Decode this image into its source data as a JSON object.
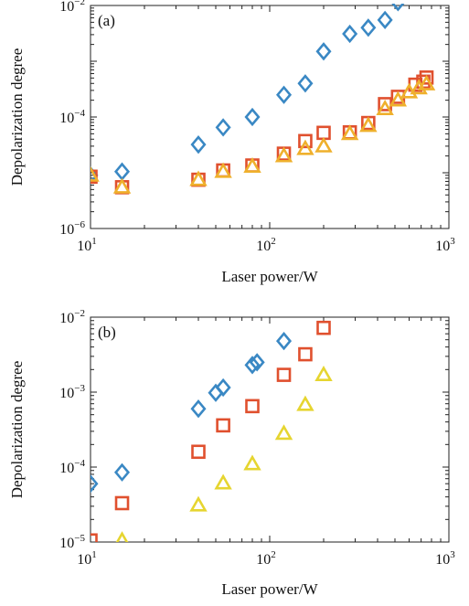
{
  "chart_data": [
    {
      "type": "scatter",
      "panel_label": "(a)",
      "xlabel": "Laser power/W",
      "ylabel": "Depolarization degree",
      "xscale": "log",
      "yscale": "log",
      "xlim": [
        10,
        1000
      ],
      "ylim": [
        1e-06,
        0.01
      ],
      "x_ticks": [
        {
          "base": "10",
          "exp": "1",
          "value": 10
        },
        {
          "base": "10",
          "exp": "2",
          "value": 100
        },
        {
          "base": "10",
          "exp": "3",
          "value": 1000
        }
      ],
      "y_ticks": [
        {
          "base": "10",
          "exp": "−6",
          "value": 1e-06
        },
        {
          "base": "10",
          "exp": "−4",
          "value": 0.0001
        },
        {
          "base": "10",
          "exp": "−2",
          "value": 0.01
        }
      ],
      "grid": false,
      "legend": "none",
      "series": [
        {
          "marker": "diamond",
          "color": "#3a88c4",
          "points": [
            [
              10,
              9e-06
            ],
            [
              15,
              1.05e-05
            ],
            [
              40,
              3.2e-05
            ],
            [
              55,
              6.5e-05
            ],
            [
              80,
              0.0001
            ],
            [
              120,
              0.00025
            ],
            [
              158,
              0.0004
            ],
            [
              200,
              0.0015
            ],
            [
              280,
              0.0031
            ],
            [
              355,
              0.004
            ],
            [
              440,
              0.0055
            ],
            [
              520,
              0.0115
            ]
          ]
        },
        {
          "marker": "square",
          "color": "#e0502e",
          "points": [
            [
              10,
              8.5e-06
            ],
            [
              15,
              5.5e-06
            ],
            [
              40,
              7.5e-06
            ],
            [
              55,
              1.1e-05
            ],
            [
              80,
              1.35e-05
            ],
            [
              120,
              2.2e-05
            ],
            [
              158,
              3.7e-05
            ],
            [
              200,
              5.2e-05
            ],
            [
              280,
              5.3e-05
            ],
            [
              355,
              7.8e-05
            ],
            [
              440,
              0.00017
            ],
            [
              520,
              0.00023
            ],
            [
              650,
              0.00038
            ],
            [
              720,
              0.00043
            ],
            [
              750,
              0.00051
            ]
          ]
        },
        {
          "marker": "triangle",
          "color": "#efb02c",
          "points": [
            [
              10,
              9e-06
            ],
            [
              15,
              5.5e-06
            ],
            [
              40,
              7.5e-06
            ],
            [
              55,
              1.05e-05
            ],
            [
              80,
              1.3e-05
            ],
            [
              120,
              2e-05
            ],
            [
              158,
              2.7e-05
            ],
            [
              200,
              3e-05
            ],
            [
              280,
              5e-05
            ],
            [
              355,
              7e-05
            ],
            [
              440,
              0.00014
            ],
            [
              520,
              0.0002
            ],
            [
              600,
              0.00028
            ],
            [
              680,
              0.00033
            ],
            [
              750,
              0.00039
            ]
          ]
        }
      ]
    },
    {
      "type": "scatter",
      "panel_label": "(b)",
      "xlabel": "Laser power/W",
      "ylabel": "Depolarization degree",
      "xscale": "log",
      "yscale": "log",
      "xlim": [
        10,
        1000
      ],
      "ylim": [
        1e-05,
        0.01
      ],
      "x_ticks": [
        {
          "base": "10",
          "exp": "1",
          "value": 10
        },
        {
          "base": "10",
          "exp": "2",
          "value": 100
        },
        {
          "base": "10",
          "exp": "3",
          "value": 1000
        }
      ],
      "y_ticks": [
        {
          "base": "10",
          "exp": "−5",
          "value": 1e-05
        },
        {
          "base": "10",
          "exp": "−4",
          "value": 0.0001
        },
        {
          "base": "10",
          "exp": "−3",
          "value": 0.001
        },
        {
          "base": "10",
          "exp": "−2",
          "value": 0.01
        }
      ],
      "grid": false,
      "legend": "none",
      "series": [
        {
          "marker": "diamond",
          "color": "#3a88c4",
          "points": [
            [
              10,
              6e-05
            ],
            [
              15,
              8.5e-05
            ],
            [
              40,
              0.0006
            ],
            [
              50,
              0.00098
            ],
            [
              55,
              0.00115
            ],
            [
              80,
              0.0023
            ],
            [
              85,
              0.0025
            ],
            [
              120,
              0.0048
            ]
          ]
        },
        {
          "marker": "square",
          "color": "#e0502e",
          "points": [
            [
              10,
              1.05e-05
            ],
            [
              15,
              3.3e-05
            ],
            [
              40,
              0.00016
            ],
            [
              55,
              0.00036
            ],
            [
              80,
              0.00065
            ],
            [
              120,
              0.0017
            ],
            [
              158,
              0.0032
            ],
            [
              200,
              0.0072
            ]
          ]
        },
        {
          "marker": "triangle",
          "color": "#e6d530",
          "points": [
            [
              15,
              1.05e-05
            ],
            [
              40,
              3.1e-05
            ],
            [
              55,
              6.1e-05
            ],
            [
              80,
              0.00011
            ],
            [
              120,
              0.00028
            ],
            [
              158,
              0.00068
            ],
            [
              200,
              0.0017
            ]
          ]
        }
      ]
    }
  ]
}
